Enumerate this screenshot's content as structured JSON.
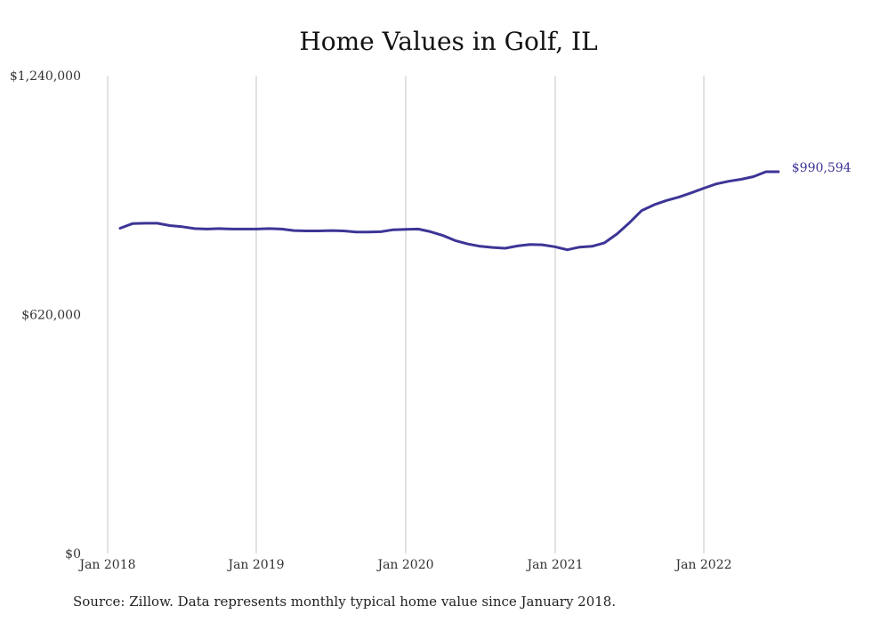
{
  "chart_data": {
    "type": "line",
    "title": "Home Values in Golf, IL",
    "xlabel": "",
    "ylabel": "",
    "x_tick_labels": [
      "Jan 2018",
      "Jan 2019",
      "Jan 2020",
      "Jan 2021",
      "Jan 2022"
    ],
    "y_tick_labels": [
      "$1,240,000",
      "$620,000",
      "$0"
    ],
    "ylim": [
      0,
      1240000
    ],
    "grid": "vertical",
    "line_color": "#3d3596",
    "end_label": "$990,594",
    "series": [
      {
        "x": [
          "2018-02",
          "2018-03",
          "2018-04",
          "2018-05",
          "2018-06",
          "2018-07",
          "2018-08",
          "2018-09",
          "2018-10",
          "2018-11",
          "2018-12",
          "2019-01",
          "2019-02",
          "2019-03",
          "2019-04",
          "2019-05",
          "2019-06",
          "2019-07",
          "2019-08",
          "2019-09",
          "2019-10",
          "2019-11",
          "2019-12",
          "2020-01",
          "2020-02",
          "2020-03",
          "2020-04",
          "2020-05",
          "2020-06",
          "2020-07",
          "2020-08",
          "2020-09",
          "2020-10",
          "2020-11",
          "2020-12",
          "2021-01",
          "2021-02",
          "2021-03",
          "2021-04",
          "2021-05",
          "2021-06",
          "2021-07",
          "2021-08",
          "2021-09",
          "2021-10",
          "2021-11",
          "2021-12",
          "2022-01",
          "2022-02",
          "2022-03",
          "2022-04",
          "2022-05",
          "2022-06",
          "2022-07"
        ],
        "values": [
          844000,
          856000,
          857000,
          857000,
          851000,
          848000,
          843000,
          842000,
          843000,
          842000,
          842000,
          842000,
          843000,
          842000,
          838000,
          837000,
          837000,
          838000,
          837000,
          834000,
          834000,
          835000,
          840000,
          841000,
          842000,
          835000,
          825000,
          812000,
          803000,
          797000,
          794000,
          792000,
          798000,
          802000,
          801000,
          796000,
          788000,
          795000,
          797000,
          806000,
          829000,
          858000,
          890000,
          905000,
          916000,
          925000,
          936000,
          948000,
          959000,
          966000,
          971000,
          978000,
          990594,
          990594
        ]
      }
    ],
    "source_note": "Source: Zillow. Data represents monthly typical home value since January 2018."
  }
}
